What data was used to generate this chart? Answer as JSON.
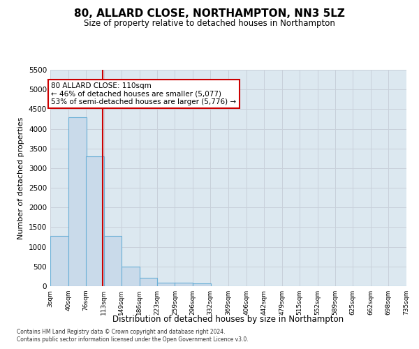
{
  "title": "80, ALLARD CLOSE, NORTHAMPTON, NN3 5LZ",
  "subtitle": "Size of property relative to detached houses in Northampton",
  "xlabel": "Distribution of detached houses by size in Northampton",
  "ylabel": "Number of detached properties",
  "footer_line1": "Contains HM Land Registry data © Crown copyright and database right 2024.",
  "footer_line2": "Contains public sector information licensed under the Open Government Licence v3.0.",
  "bar_left_edges": [
    3,
    40,
    76,
    113,
    149,
    186,
    223,
    259,
    296,
    332,
    369,
    406,
    442,
    479,
    515,
    552,
    589,
    625,
    662,
    698
  ],
  "bar_heights": [
    1270,
    4300,
    3300,
    1280,
    490,
    210,
    90,
    80,
    65,
    0,
    0,
    0,
    0,
    0,
    0,
    0,
    0,
    0,
    0,
    0
  ],
  "bin_width": 37,
  "tick_labels": [
    "3sqm",
    "40sqm",
    "76sqm",
    "113sqm",
    "149sqm",
    "186sqm",
    "223sqm",
    "259sqm",
    "296sqm",
    "332sqm",
    "369sqm",
    "406sqm",
    "442sqm",
    "479sqm",
    "515sqm",
    "552sqm",
    "589sqm",
    "625sqm",
    "662sqm",
    "698sqm",
    "735sqm"
  ],
  "bar_color": "#c9daea",
  "bar_edge_color": "#6aafd6",
  "vline_x": 110,
  "vline_color": "#cc0000",
  "ylim": [
    0,
    5500
  ],
  "yticks": [
    0,
    500,
    1000,
    1500,
    2000,
    2500,
    3000,
    3500,
    4000,
    4500,
    5000,
    5500
  ],
  "annotation_line1": "80 ALLARD CLOSE: 110sqm",
  "annotation_line2": "← 46% of detached houses are smaller (5,077)",
  "annotation_line3": "53% of semi-detached houses are larger (5,776) →",
  "annotation_box_color": "#ffffff",
  "annotation_box_edge": "#cc0000",
  "grid_color": "#c8d0da",
  "bg_color": "#dce8f0"
}
